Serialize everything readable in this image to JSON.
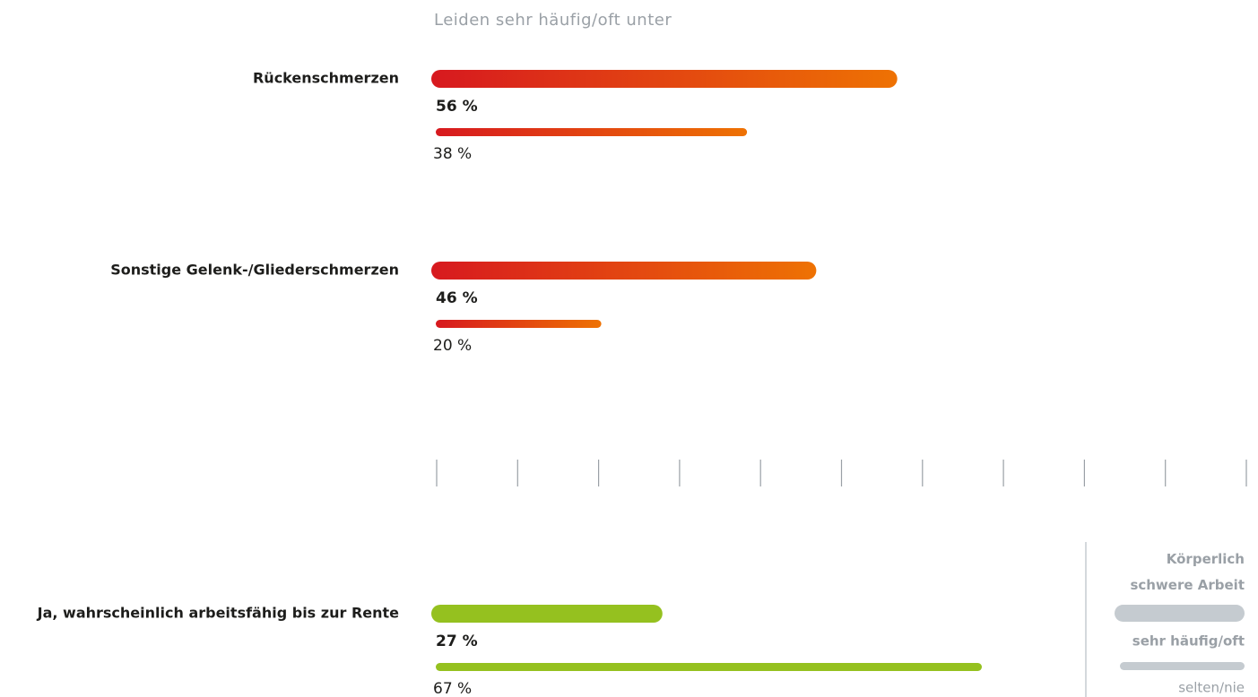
{
  "chart_data": {
    "type": "bar",
    "orientation": "horizontal",
    "title": "Leiden sehr häufig/oft unter",
    "categories": [
      "Rückenschmerzen",
      "Sonstige Gelenk-/Gliederschmerzen",
      "Ja, wahrscheinlich arbeitsfähig bis zur Rente"
    ],
    "category_colors": [
      [
        "#d7191f",
        "#ee7203"
      ],
      [
        "#d7191f",
        "#ee7203"
      ],
      [
        "#95c11f",
        "#95c11f"
      ]
    ],
    "legend_title": "Körperlich schwere Arbeit",
    "legend_color": "#c5cbd0",
    "series": [
      {
        "name": "sehr häufig/oft",
        "values": [
          56,
          46,
          27
        ],
        "value_labels": [
          "56 %",
          "46 %",
          "27 %"
        ]
      },
      {
        "name": "selten/nie",
        "values": [
          38,
          20,
          67
        ],
        "value_labels": [
          "38 %",
          "20 %",
          "67 %"
        ]
      }
    ],
    "xlim": [
      0,
      100
    ],
    "xticks": [
      0,
      10,
      20,
      30,
      40,
      50,
      60,
      70,
      80,
      90,
      100
    ]
  }
}
